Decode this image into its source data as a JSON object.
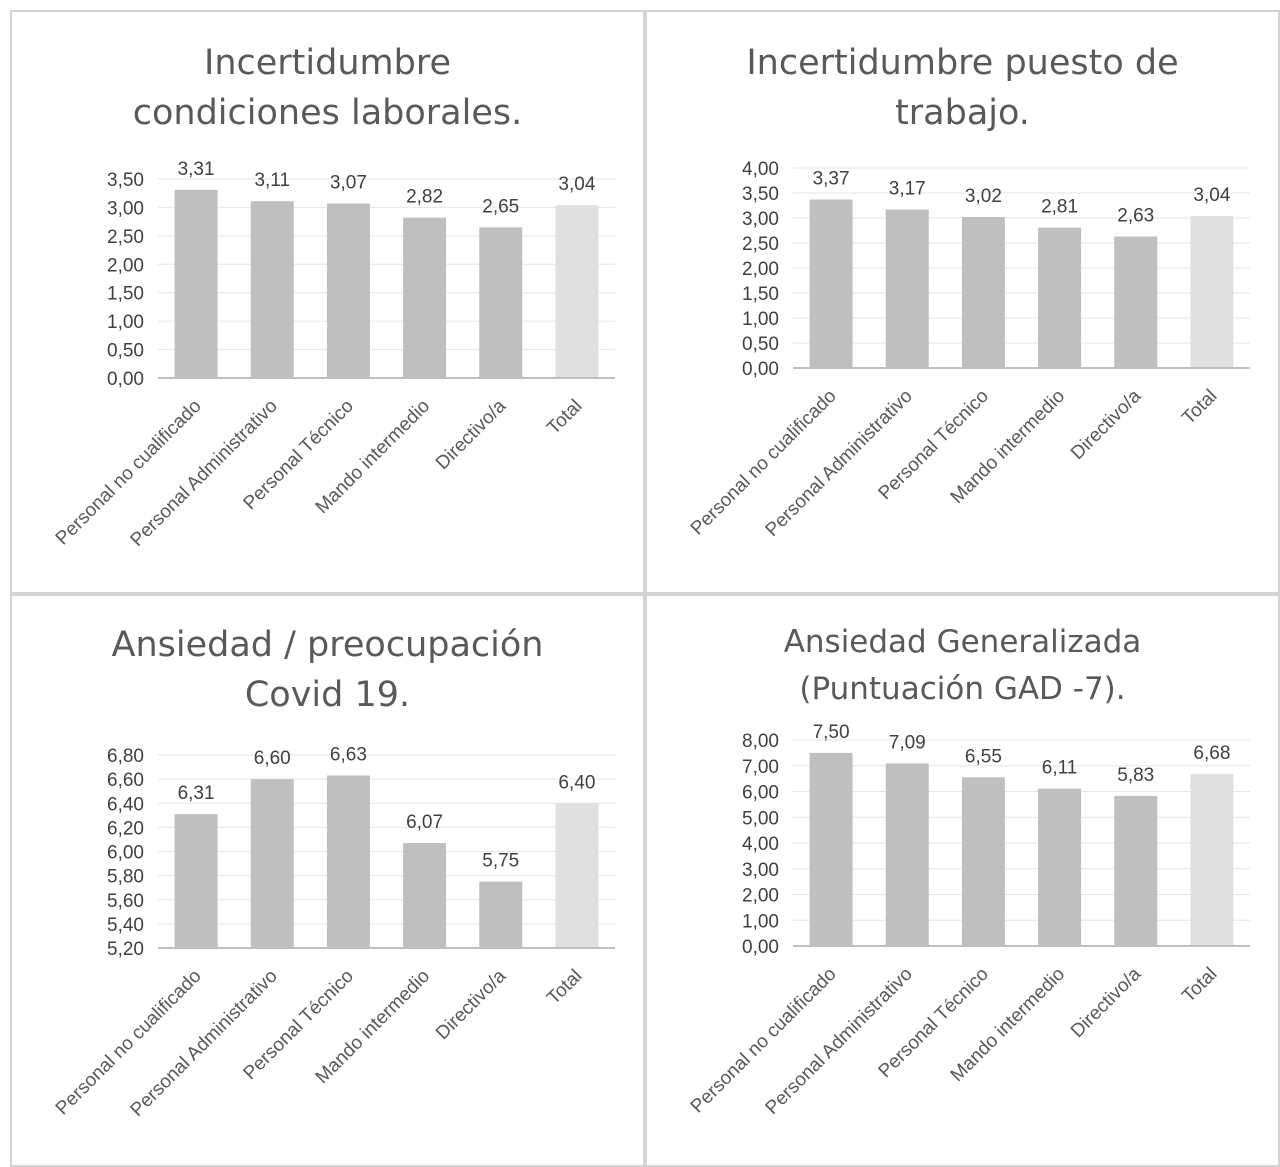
{
  "colors": {
    "bar": "#bfbfbf",
    "total_bar": "#e0e0e0",
    "grid": "#e6e6e6",
    "axis": "#bfbfbf",
    "text": "#404040",
    "title": "#595959"
  },
  "chart_data": [
    {
      "type": "bar",
      "title_lines": [
        "Incertidumbre",
        "condiciones laborales."
      ],
      "categories": [
        "Personal no cualificado",
        "Personal Administrativo",
        "Personal Técnico",
        "Mando intermedio",
        "Directivo/a",
        "Total"
      ],
      "values": [
        3.31,
        3.11,
        3.07,
        2.82,
        2.65,
        3.04
      ],
      "value_labels": [
        "3,31",
        "3,11",
        "3,07",
        "2,82",
        "2,65",
        "3,04"
      ],
      "ylim": [
        0,
        3.5
      ],
      "yticks": [
        "0,00",
        "0,50",
        "1,00",
        "1,50",
        "2,00",
        "2,50",
        "3,00",
        "3,50"
      ],
      "grid": true,
      "xlabel": "",
      "ylabel": ""
    },
    {
      "type": "bar",
      "title_lines": [
        "Incertidumbre puesto de",
        "trabajo."
      ],
      "categories": [
        "Personal no cualificado",
        "Personal Administrativo",
        "Personal Técnico",
        "Mando intermedio",
        "Directivo/a",
        "Total"
      ],
      "values": [
        3.37,
        3.17,
        3.02,
        2.81,
        2.63,
        3.04
      ],
      "value_labels": [
        "3,37",
        "3,17",
        "3,02",
        "2,81",
        "2,63",
        "3,04"
      ],
      "ylim": [
        0,
        4.0
      ],
      "yticks": [
        "0,00",
        "0,50",
        "1,00",
        "1,50",
        "2,00",
        "2,50",
        "3,00",
        "3,50",
        "4,00"
      ],
      "grid": true,
      "xlabel": "",
      "ylabel": ""
    },
    {
      "type": "bar",
      "title_lines": [
        "Ansiedad / preocupación",
        "Covid 19."
      ],
      "categories": [
        "Personal no cualificado",
        "Personal Administrativo",
        "Personal Técnico",
        "Mando intermedio",
        "Directivo/a",
        "Total"
      ],
      "values": [
        6.31,
        6.6,
        6.63,
        6.07,
        5.75,
        6.4
      ],
      "value_labels": [
        "6,31",
        "6,60",
        "6,63",
        "6,07",
        "5,75",
        "6,40"
      ],
      "ylim": [
        5.2,
        6.8
      ],
      "yticks": [
        "5,20",
        "5,40",
        "5,60",
        "5,80",
        "6,00",
        "6,20",
        "6,40",
        "6,60",
        "6,80"
      ],
      "grid": true,
      "xlabel": "",
      "ylabel": ""
    },
    {
      "type": "bar",
      "title_lines": [
        "Ansiedad Generalizada",
        "(Puntuación GAD -7)."
      ],
      "categories": [
        "Personal no cualificado",
        "Personal Administrativo",
        "Personal Técnico",
        "Mando intermedio",
        "Directivo/a",
        "Total"
      ],
      "values": [
        7.5,
        7.09,
        6.55,
        6.11,
        5.83,
        6.68
      ],
      "value_labels": [
        "7,50",
        "7,09",
        "6,55",
        "6,11",
        "5,83",
        "6,68"
      ],
      "ylim": [
        0,
        8.0
      ],
      "yticks": [
        "0,00",
        "1,00",
        "2,00",
        "3,00",
        "4,00",
        "5,00",
        "6,00",
        "7,00",
        "8,00"
      ],
      "grid": true,
      "xlabel": "",
      "ylabel": ""
    }
  ]
}
